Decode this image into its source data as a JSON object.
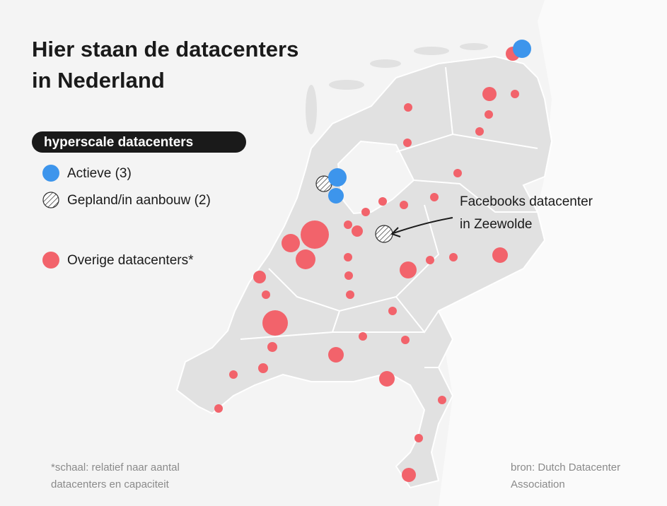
{
  "header": {
    "title": [
      "Hier staan de datacenters",
      "in Nederland"
    ]
  },
  "legend": {
    "heading": "hyperscale datacenters",
    "items": [
      "Actieve (3)",
      "Gepland/in aanbouw (2)",
      "Overige datacenters*"
    ]
  },
  "annotation": [
    "Facebooks datacenter",
    "in Zeewolde"
  ],
  "footnote": [
    "*schaal: relatief naar aantal",
    "datacenters en capaciteit"
  ],
  "source": [
    "bron: Dutch Datacenter",
    "Association"
  ]
}
